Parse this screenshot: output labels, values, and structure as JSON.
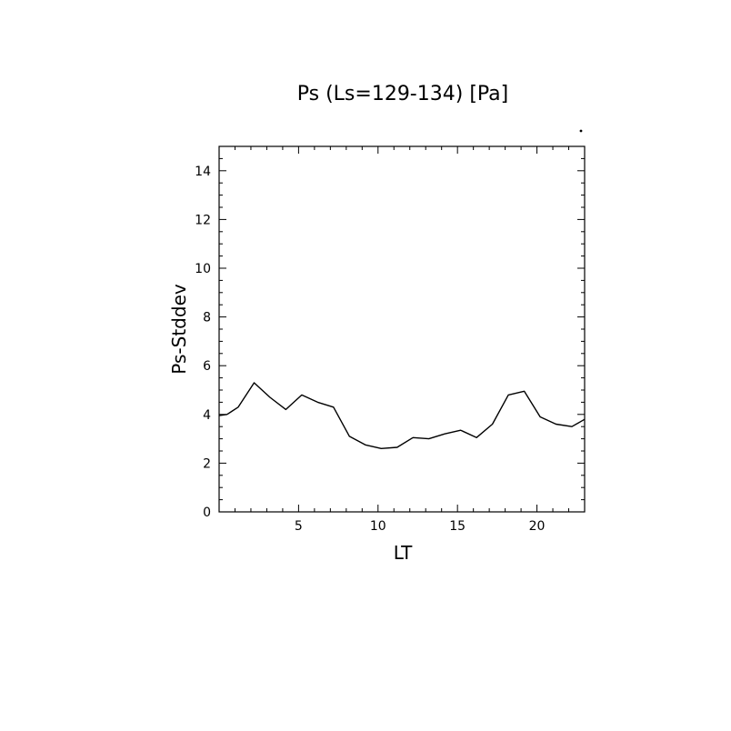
{
  "chart_data": {
    "type": "line",
    "title": "Ps (Ls=129-134) [Pa]",
    "xlabel": "LT",
    "ylabel": "Ps-Stddev",
    "xlim": [
      0,
      23
    ],
    "ylim": [
      0,
      15
    ],
    "x_ticks": [
      5,
      10,
      15,
      20
    ],
    "y_ticks": [
      0,
      2,
      4,
      6,
      8,
      10,
      12,
      14
    ],
    "grid": false,
    "series": [
      {
        "x": [
          0,
          0.5,
          1.2,
          2.2,
          3.2,
          4.2,
          5.2,
          6.2,
          7.2,
          8.2,
          9.2,
          10.2,
          11.2,
          12.2,
          13.2,
          14.2,
          15.2,
          16.2,
          17.2,
          18.2,
          19.2,
          20.2,
          21.2,
          22.2,
          23
        ],
        "y": [
          3.95,
          4.0,
          4.3,
          5.3,
          4.7,
          4.2,
          4.8,
          4.5,
          4.3,
          3.1,
          2.75,
          2.6,
          2.65,
          3.05,
          3.0,
          3.2,
          3.35,
          3.05,
          3.6,
          4.8,
          4.95,
          3.9,
          3.6,
          3.5,
          3.8
        ],
        "color": "#000000"
      }
    ]
  }
}
